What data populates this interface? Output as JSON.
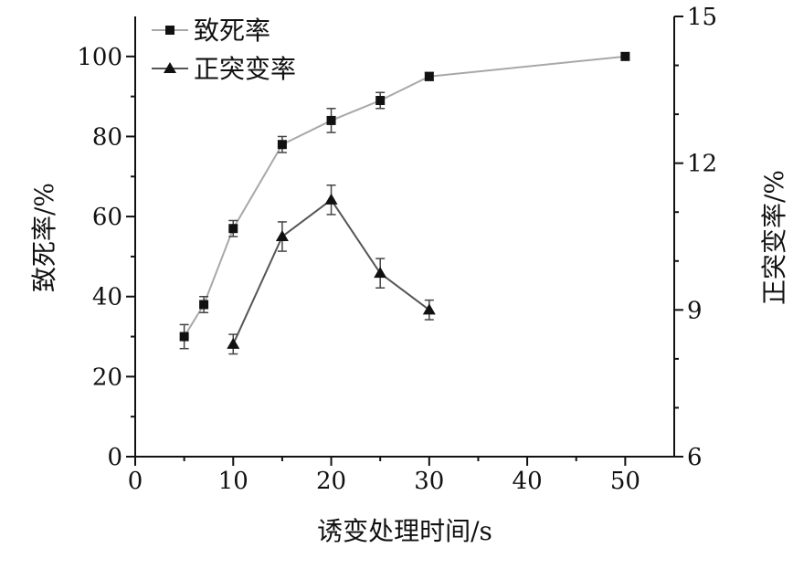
{
  "chart_data": {
    "type": "line",
    "title": "",
    "xlabel": "诱变处理时间/s",
    "ylabel": "致死率/%",
    "y2label": "正突变率/%",
    "xlim": [
      0,
      55
    ],
    "ylim": [
      0,
      110
    ],
    "y2lim": [
      6,
      15
    ],
    "x_ticks": [
      0,
      10,
      20,
      30,
      40,
      50
    ],
    "y_ticks": [
      0,
      20,
      40,
      60,
      80,
      100
    ],
    "y2_ticks": [
      6,
      9,
      12,
      15
    ],
    "grid": false,
    "legend_position": "top-left",
    "series": [
      {
        "name": "致死率",
        "axis": "left",
        "marker": "square",
        "color": "#a8a8a8",
        "x": [
          5,
          7,
          10,
          15,
          20,
          25,
          30,
          50
        ],
        "y": [
          30,
          38,
          57,
          78,
          84,
          89,
          95,
          100
        ],
        "err": [
          3,
          2,
          2,
          2,
          3,
          2,
          1,
          0
        ]
      },
      {
        "name": "正突变率",
        "axis": "right",
        "marker": "triangle",
        "color": "#555555",
        "x": [
          10,
          15,
          20,
          25,
          30
        ],
        "y": [
          8.3,
          10.5,
          11.25,
          9.75,
          9.0
        ],
        "err": [
          0.2,
          0.3,
          0.3,
          0.3,
          0.2
        ]
      }
    ]
  }
}
